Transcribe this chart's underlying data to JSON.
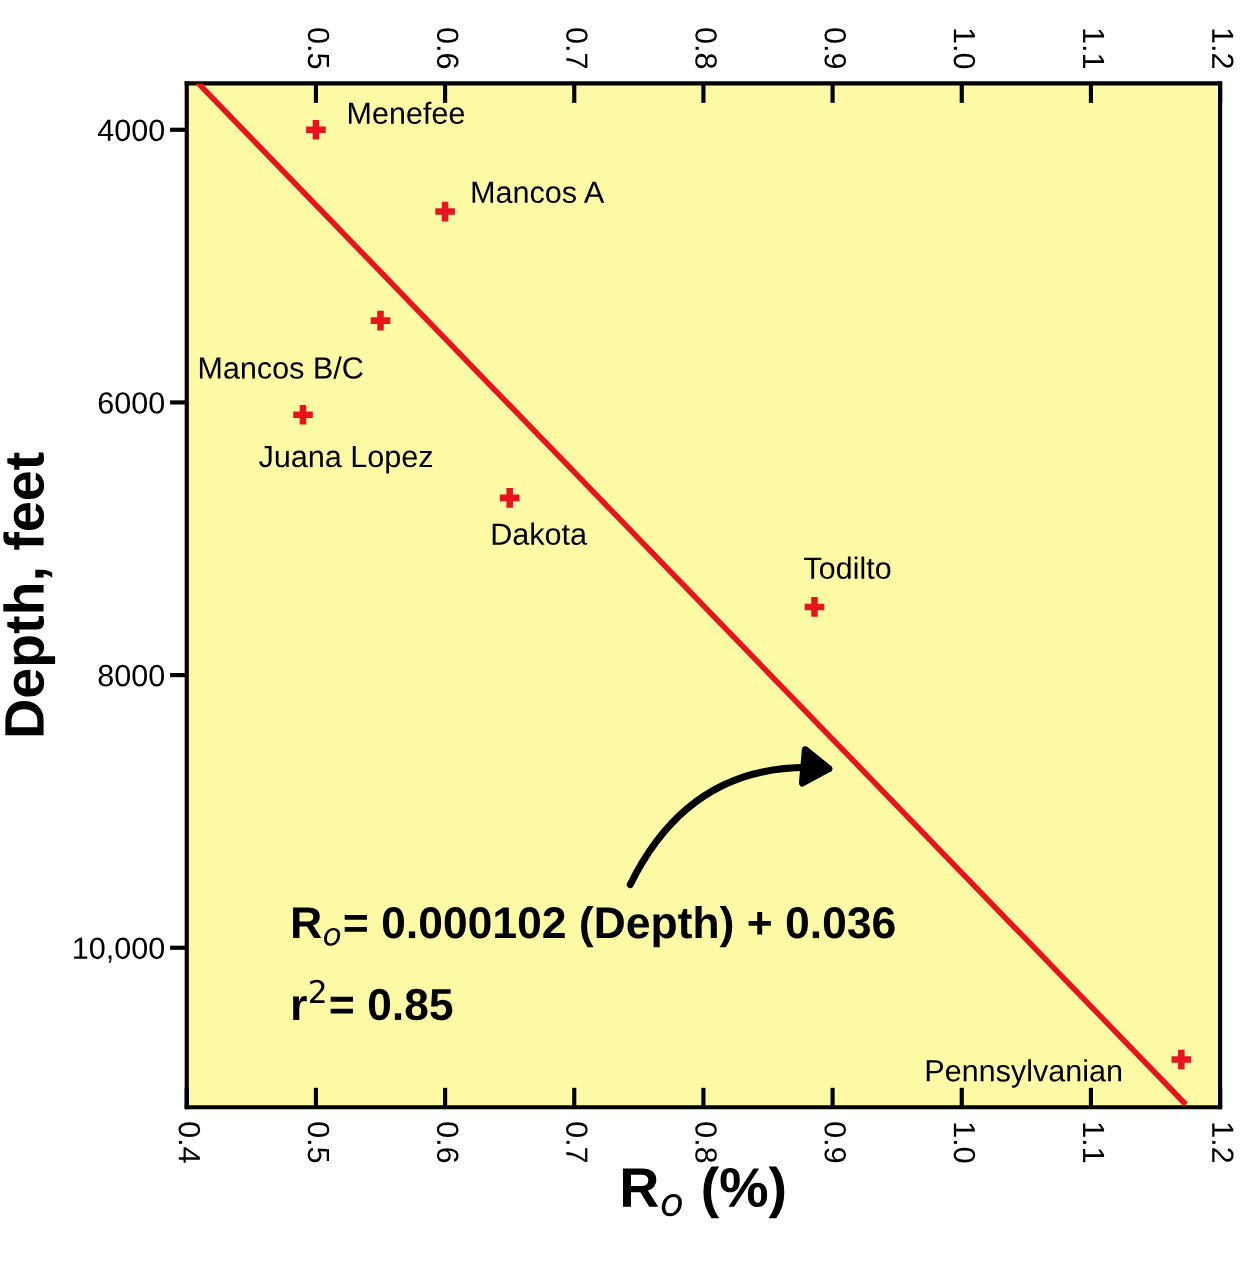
{
  "chart_data": {
    "type": "scatter",
    "xlabel": "R$_{o}$ (%)",
    "ylabel": "Depth, feet",
    "series": [
      {
        "type": "scatter",
        "color": "#e8141c",
        "marker": "cross",
        "x": [
          0.5,
          0.6,
          0.55,
          0.49,
          0.65,
          0.886,
          1.17
        ],
        "values": [
          4000,
          4600,
          5400,
          6090,
          6700,
          7500,
          10820
        ]
      },
      {
        "type": "line",
        "color": "#e8141c",
        "line_style": "solid",
        "x": [
          0.409,
          1.172
        ],
        "values": [
          3660,
          11135
        ]
      }
    ],
    "xlim": [
      0.4,
      1.2
    ],
    "xticks": [
      0.4,
      0.5,
      0.6,
      0.7,
      0.8,
      0.9,
      {
        "value": 1.0,
        "label": "1.0"
      },
      1.1,
      1.2
    ],
    "x2lim": [
      0.4,
      1.2
    ],
    "x2ticks": [
      0.5,
      0.6,
      0.7,
      0.8,
      0.9,
      {
        "value": 1.0,
        "label": "1.0"
      },
      1.1,
      1.2
    ],
    "ylim": [
      11170,
      3660
    ],
    "yticks": [
      4000,
      6000,
      8000,
      {
        "value": 10000,
        "label": "10,000"
      }
    ],
    "grid": false,
    "legend": false,
    "annotations": [
      {
        "text": "Menefee",
        "x": 0.5,
        "y": 4000
      },
      {
        "text": "Mancos A",
        "x": 0.6,
        "y": 4600
      },
      {
        "text": "Mancos B/C",
        "x": 0.55,
        "y": 5400
      },
      {
        "text": "Juana Lopez",
        "x": 0.49,
        "y": 6090
      },
      {
        "text": "Dakota",
        "x": 0.65,
        "y": 6700
      },
      {
        "text": "Todilto",
        "x": 0.886,
        "y": 7500
      },
      {
        "text": "Pennsylvanian",
        "x": 1.17,
        "y": 10820
      },
      "R$_{o}$= 0.000102 (Depth) + 0.036",
      "r$^{2}$= 0.85"
    ]
  }
}
